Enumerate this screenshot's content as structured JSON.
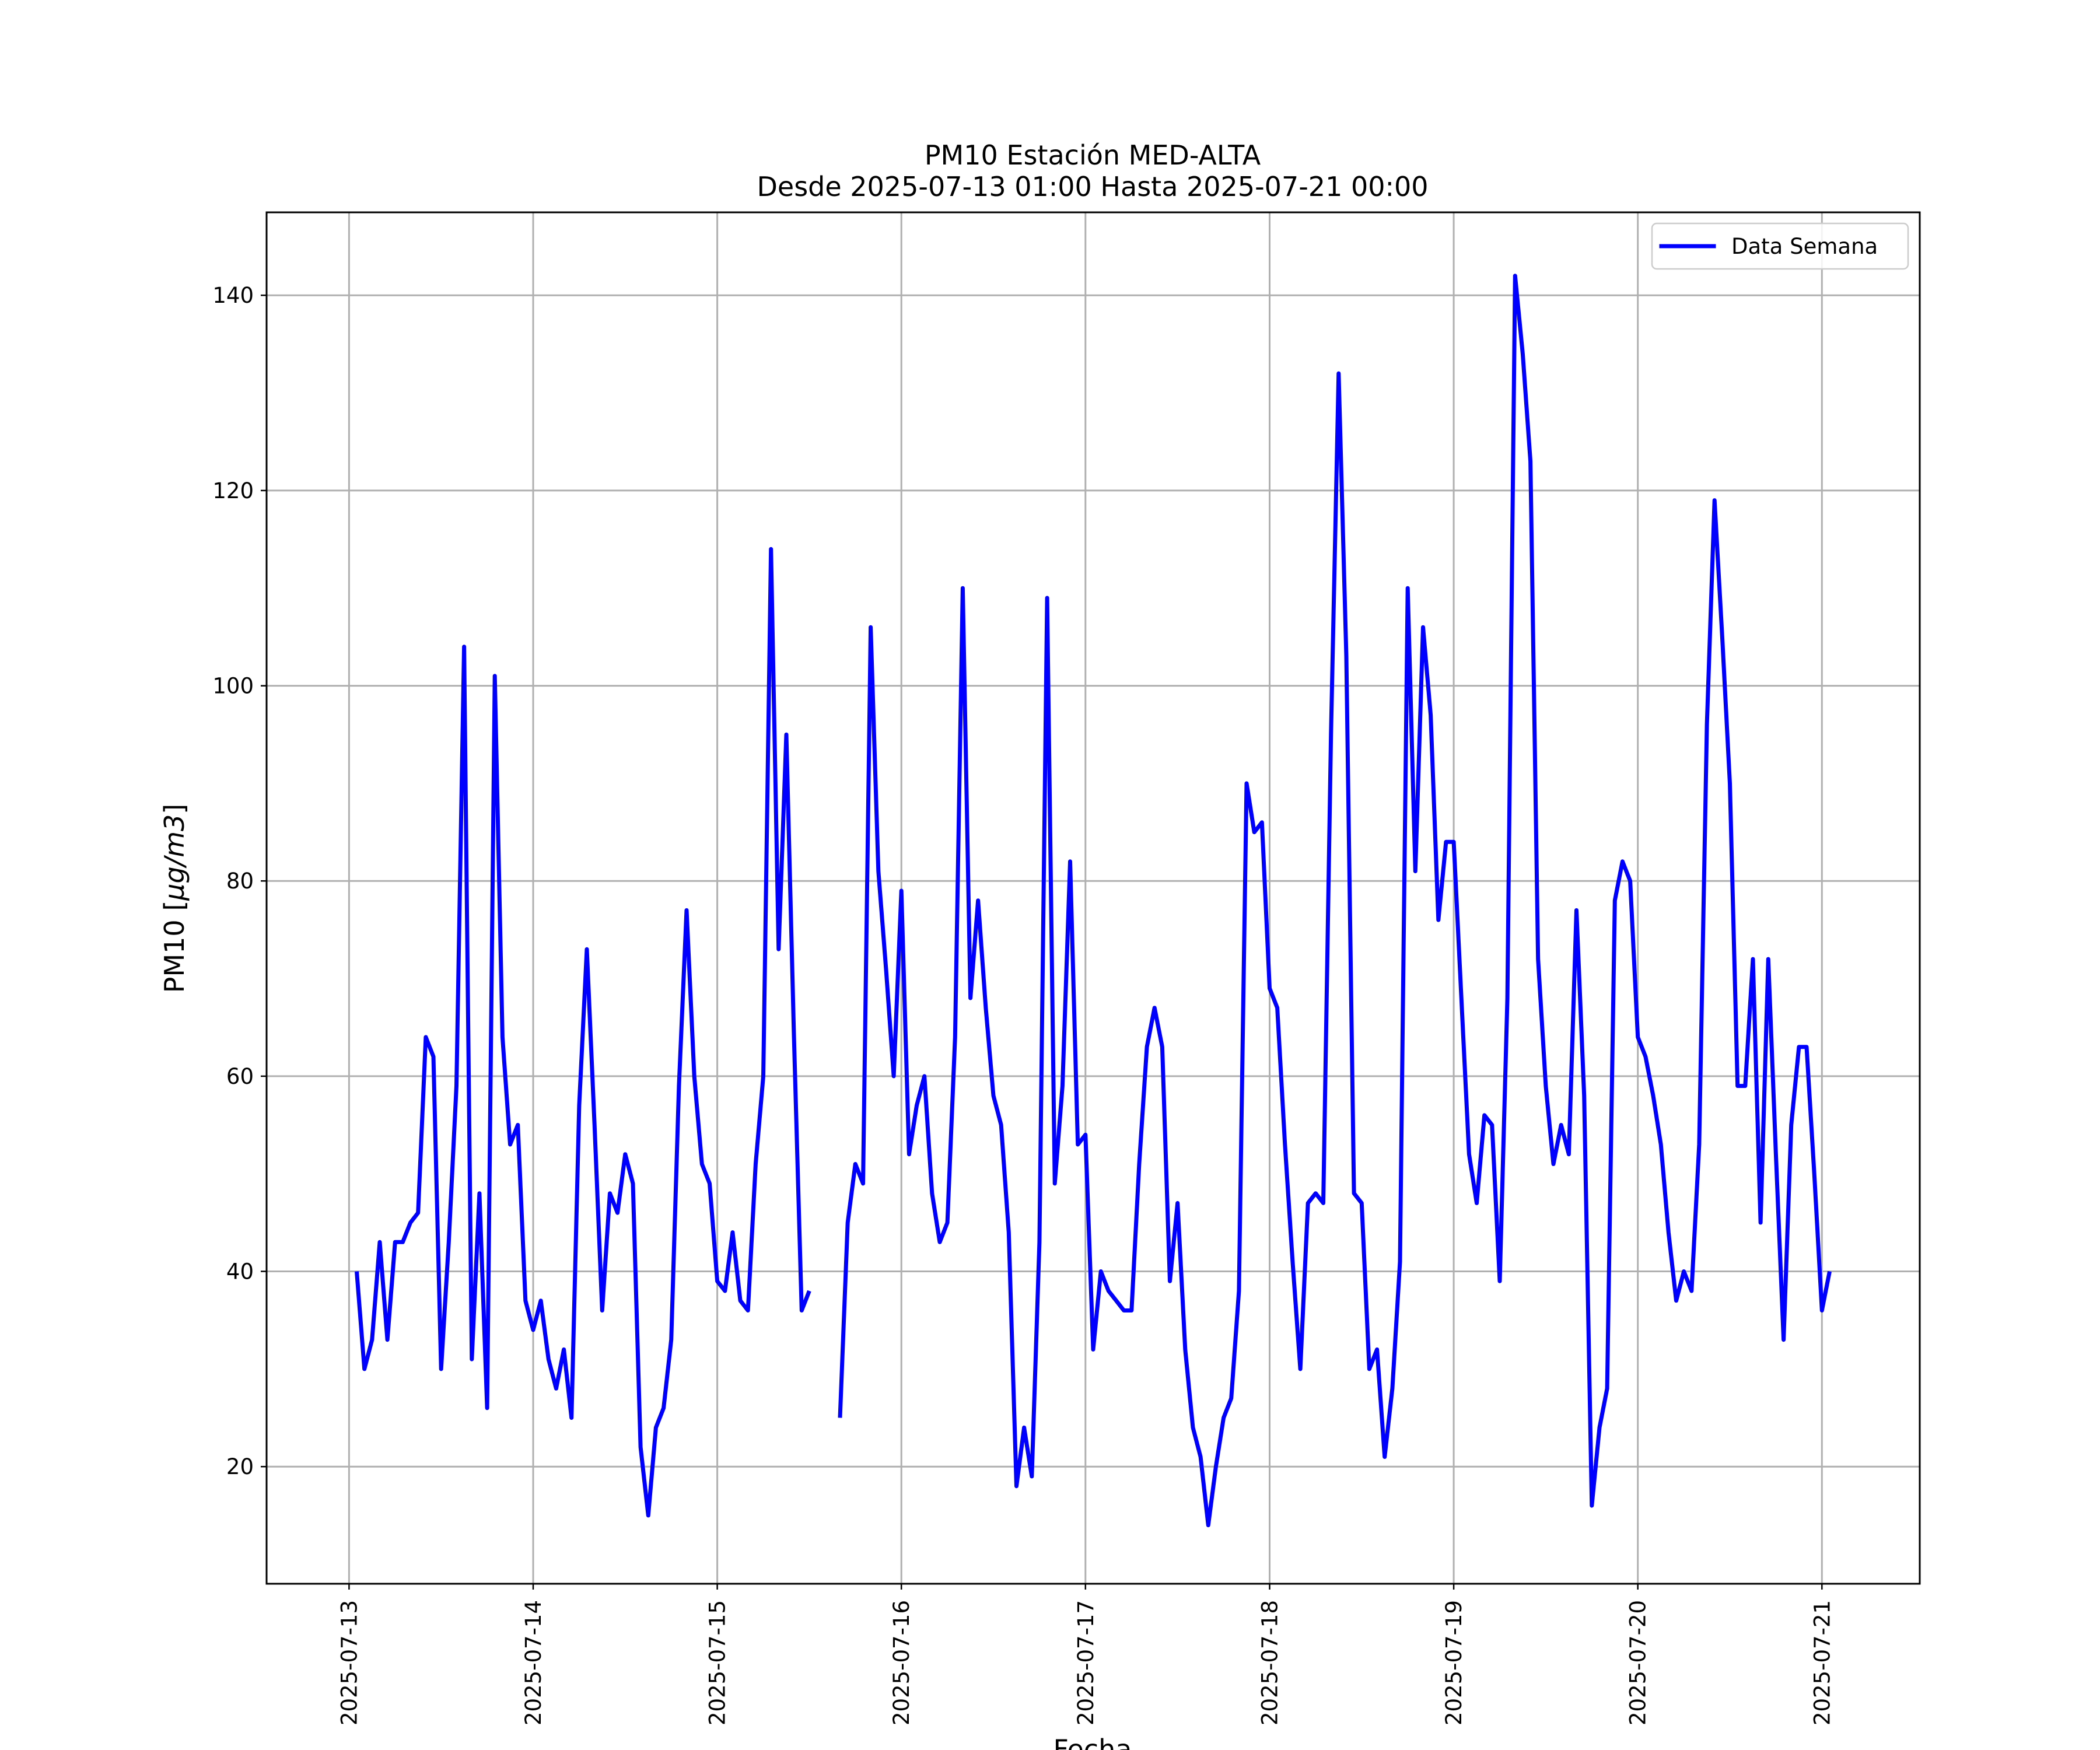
{
  "chart_data": {
    "type": "line",
    "title": "PM10 Estación MED-ALTA",
    "subtitle": "Desde 2025-07-13 01:00 Hasta 2025-07-21 00:00",
    "xlabel": "Fecha",
    "ylabel_prefix": "PM10 [",
    "ylabel_unit": "μg/m3",
    "ylabel_suffix": "]",
    "x_ticks": [
      "2025-07-13",
      "2025-07-14",
      "2025-07-15",
      "2025-07-16",
      "2025-07-17",
      "2025-07-18",
      "2025-07-19",
      "2025-07-20",
      "2025-07-21"
    ],
    "y_ticks": [
      20,
      40,
      60,
      80,
      100,
      120,
      140
    ],
    "xlim": [
      "2025-07-12 13:15",
      "2025-07-21 12:45"
    ],
    "ylim": [
      8,
      148.5
    ],
    "grid": true,
    "legend_position": "top-right",
    "series": [
      {
        "name": "Data Semana",
        "color": "#0000ff",
        "start": "2025-07-13 01:00",
        "interval_hours": 1,
        "values": [
          40,
          30,
          33,
          43,
          33,
          43,
          43,
          45,
          46,
          64,
          62,
          30,
          43,
          59,
          104,
          31,
          48,
          26,
          101,
          64,
          53,
          55,
          37,
          34,
          37,
          31,
          28,
          32,
          25,
          57,
          73,
          55,
          36,
          48,
          46,
          52,
          49,
          22,
          15,
          24,
          26,
          33,
          59,
          77,
          60,
          51,
          49,
          39,
          38,
          44,
          37,
          36,
          51,
          60,
          114,
          73,
          95,
          64,
          36,
          38,
          null,
          null,
          null,
          25,
          45,
          51,
          49,
          106,
          81,
          71,
          60,
          79,
          52,
          57,
          60,
          48,
          43,
          45,
          64,
          110,
          68,
          78,
          67,
          58,
          55,
          44,
          18,
          24,
          19,
          43,
          109,
          49,
          59,
          82,
          53,
          54,
          32,
          40,
          38,
          37,
          36,
          36,
          51,
          63,
          67,
          63,
          39,
          47,
          32,
          24,
          21,
          14,
          20,
          25,
          27,
          38,
          90,
          85,
          86,
          69,
          67,
          53,
          41,
          30,
          47,
          48,
          47,
          95,
          132,
          103,
          48,
          47,
          30,
          32,
          21,
          28,
          41,
          110,
          81,
          106,
          97,
          76,
          84,
          84,
          68,
          52,
          47,
          56,
          55,
          39,
          68,
          142,
          134,
          123,
          72,
          59,
          51,
          55,
          52,
          77,
          58,
          16,
          24,
          28,
          78,
          82,
          80,
          64,
          62,
          58,
          53,
          44,
          37,
          40,
          38,
          53,
          96,
          119,
          105,
          90,
          59,
          59,
          72,
          45,
          72,
          52,
          33,
          55,
          63,
          63,
          50,
          36,
          40
        ]
      }
    ]
  }
}
